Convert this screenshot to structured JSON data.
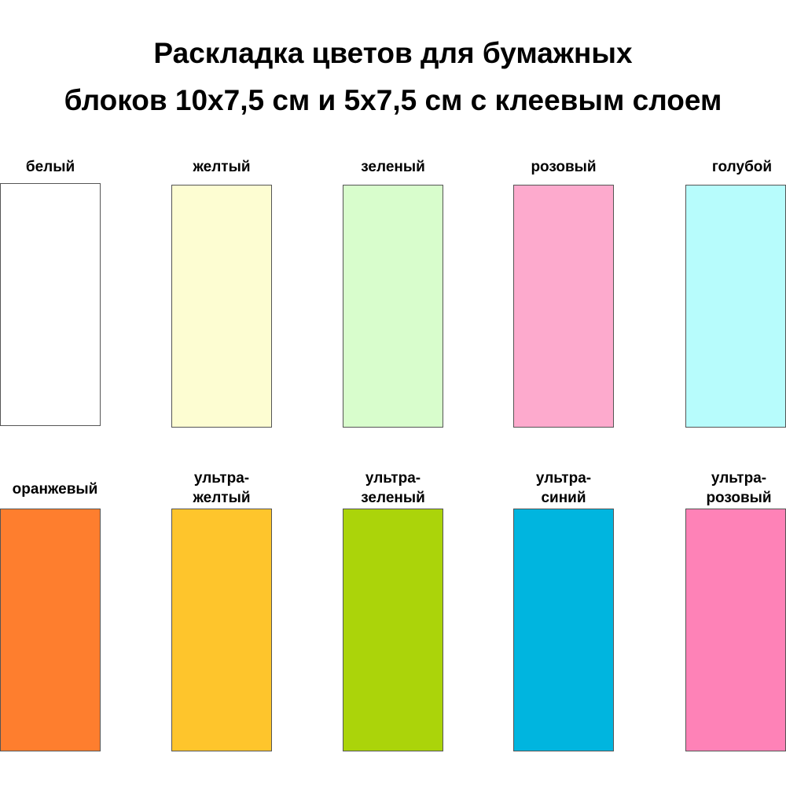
{
  "title": {
    "line1": "Раскладка цветов для бумажных",
    "line2": "блоков 10х7,5 см и 5х7,5 см с клеевым слоем"
  },
  "rows": [
    [
      {
        "label1": "белый",
        "label2": "",
        "color": "#ffffff"
      },
      {
        "label1": "желтый",
        "label2": "",
        "color": "#fdfdd2"
      },
      {
        "label1": "зеленый",
        "label2": "",
        "color": "#d8fdcc"
      },
      {
        "label1": "розовый",
        "label2": "",
        "color": "#fdaacd"
      },
      {
        "label1": "голубой",
        "label2": "",
        "color": "#b7fcfc"
      }
    ],
    [
      {
        "label1": "оранжевый",
        "label2": "",
        "color": "#fe7e2e"
      },
      {
        "label1": "ультра-",
        "label2": "желтый",
        "color": "#fec52c"
      },
      {
        "label1": "ультра-",
        "label2": "зеленый",
        "color": "#abd40a"
      },
      {
        "label1": "ультра-",
        "label2": "синий",
        "color": "#00b5df"
      },
      {
        "label1": "ультра-",
        "label2": "розовый",
        "color": "#fe82b7"
      }
    ]
  ]
}
